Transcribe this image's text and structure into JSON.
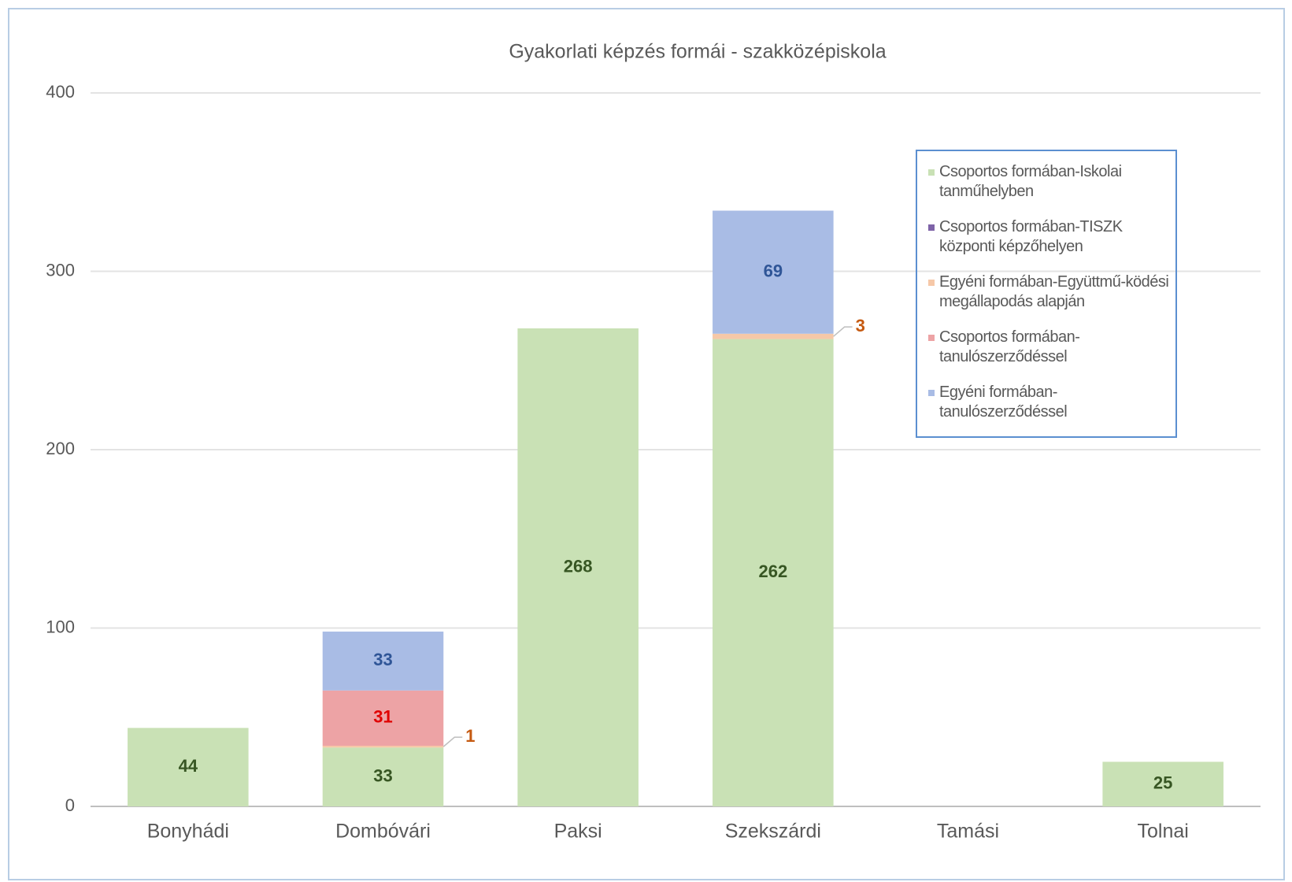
{
  "chart_data": {
    "type": "stacked_bar",
    "title": "Gyakorlati képzés formái - szakközépiskola",
    "categories": [
      "Bonyhádi",
      "Dombóvári",
      "Paksi",
      "Szekszárdi",
      "Tamási",
      "Tolnai"
    ],
    "series": [
      {
        "name": "Csoportos formában-Iskolai tanműhelyben",
        "color": "#c9e1b5",
        "label_color": "#375623",
        "values": [
          44,
          33,
          268,
          262,
          null,
          25
        ]
      },
      {
        "name": "Csoportos formában-TISZK központi képzőhelyen",
        "color": "#7e63a8",
        "label_color": "#4b3570",
        "values": [
          null,
          null,
          null,
          null,
          null,
          null
        ]
      },
      {
        "name": "Egyéni formában-Együttmű-ködési megállapodás alapján",
        "color": "#f6c8a8",
        "label_color": "#c55a11",
        "values": [
          null,
          1,
          null,
          3,
          null,
          null
        ]
      },
      {
        "name": "Csoportos formában-tanulószerződéssel",
        "color": "#eda3a5",
        "label_color": "#e00000",
        "values": [
          null,
          31,
          null,
          null,
          null,
          null
        ]
      },
      {
        "name": "Egyéni formában-tanulószerződéssel",
        "color": "#a9bce5",
        "label_color": "#2f5597",
        "values": [
          null,
          33,
          null,
          69,
          null,
          null
        ]
      }
    ],
    "ylim": [
      0,
      400
    ],
    "yticks": [
      0,
      100,
      200,
      300,
      400
    ],
    "grid": true,
    "legend": "upper right"
  }
}
